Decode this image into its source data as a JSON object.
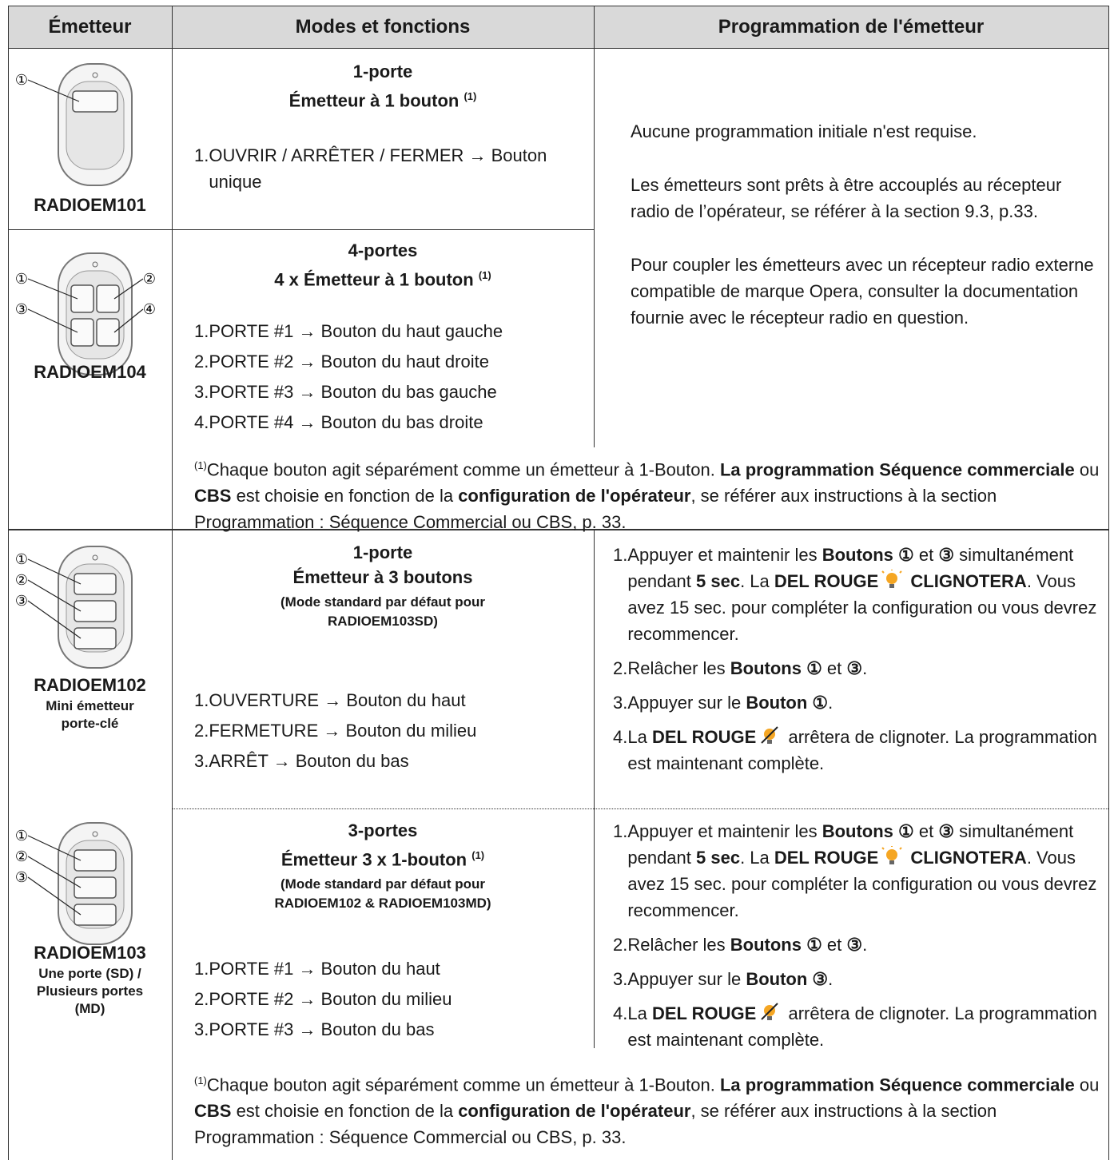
{
  "header": [
    "Émetteur",
    "Modes et fonctions",
    "Programmation de l'émetteur"
  ],
  "groups": [
    {
      "devices": [
        {
          "callouts": [
            "①"
          ],
          "model": "RADIOEM101",
          "modes": {
            "title": [
              "1-porte",
              "Émetteur à 1 bouton"
            ],
            "title_mark": "(1)",
            "items": [
              {
                "num": "1.",
                "text": "OUVRIR / ARRÊTER / FERMER → Bouton unique"
              }
            ]
          }
        },
        {
          "callouts": [
            "①",
            "②",
            "③",
            "④"
          ],
          "model": "RADIOEM104",
          "modes": {
            "title": [
              "4-portes",
              "4 x Émetteur à 1 bouton"
            ],
            "title_mark": "(1)",
            "items": [
              {
                "num": "1.",
                "text": "PORTE #1 → Bouton du haut gauche"
              },
              {
                "num": "2.",
                "text": "PORTE #2 → Bouton du haut droite"
              },
              {
                "num": "3.",
                "text": "PORTE #3 → Bouton du bas gauche"
              },
              {
                "num": "4.",
                "text": "PORTE #4 → Bouton du bas droite"
              }
            ]
          }
        }
      ],
      "programming": [
        "Aucune programmation initiale n'est requise.",
        "Les émetteurs sont prêts à être accouplés au récepteur radio de l’opérateur, se référer à la section 9.3, p.33.",
        "Pour coupler les émetteurs avec un récepteur radio externe compatible de marque Opera, consulter la documentation fournie avec le récepteur radio en question."
      ],
      "footnote": {
        "mark": "(1)",
        "runs": [
          {
            "text": "Chaque bouton agit séparément comme un émetteur à 1-Bouton. "
          },
          {
            "text": "La programmation Séquence commerciale",
            "bold": true
          },
          {
            "text": " ou "
          },
          {
            "text": "CBS",
            "bold": true
          },
          {
            "text": " est choisie en fonction de la "
          },
          {
            "text": "configuration de l'opérateur",
            "bold": true
          },
          {
            "text": ", se référer aux instructions à la section Programmation : Séquence Commercial ou CBS, p. 33."
          }
        ]
      }
    },
    {
      "devices": [
        {
          "callouts": [
            "①",
            "②",
            "③"
          ],
          "model": "RADIOEM102",
          "model_note": "Mini émetteur porte-clé",
          "modes": {
            "title": [
              "1-porte",
              "Émetteur à 3 boutons"
            ],
            "note": "(Mode standard par défaut pour RADIOEM103SD)",
            "items": [
              {
                "num": "1.",
                "text": "OUVERTURE → Bouton du haut"
              },
              {
                "num": "2.",
                "text": "FERMETURE → Bouton du milieu"
              },
              {
                "num": "3.",
                "text": "ARRÊT → Bouton du bas"
              }
            ]
          },
          "programming": [
            {
              "num": "1.",
              "runs": [
                {
                  "text": "Appuyer et maintenir les "
                },
                {
                  "text": "Boutons ①",
                  "bold": true
                },
                {
                  "text": " et "
                },
                {
                  "text": "③",
                  "bold": true
                },
                {
                  "text": " simultanément pendant "
                },
                {
                  "text": "5 sec",
                  "bold": true
                },
                {
                  "text": ". La "
                },
                {
                  "text": "DEL ROUGE",
                  "bold": true
                },
                {
                  "text": " CLIGNOTERA",
                  "bold": true
                },
                {
                  "text": ". Vous avez 15 sec. pour compléter la configuration ou vous devrez recommencer."
                }
              ]
            },
            {
              "num": "2.",
              "runs": [
                {
                  "text": "Relâcher les "
                },
                {
                  "text": "Boutons ①",
                  "bold": true
                },
                {
                  "text": " et "
                },
                {
                  "text": "③",
                  "bold": true
                },
                {
                  "text": "."
                }
              ]
            },
            {
              "num": "3.",
              "runs": [
                {
                  "text": "Appuyer sur le "
                },
                {
                  "text": "Bouton ①",
                  "bold": true
                },
                {
                  "text": "."
                }
              ]
            },
            {
              "num": "4.",
              "runs": [
                {
                  "text": "La "
                },
                {
                  "text": "DEL ROUGE",
                  "bold": true
                },
                {
                  "text": " arrêtera de clignoter. La programmation est maintenant complète."
                }
              ]
            }
          ]
        },
        {
          "callouts": [
            "①",
            "②",
            "③"
          ],
          "model": "RADIOEM103",
          "model_note": "Une porte (SD) / Plusieurs portes (MD)",
          "modes": {
            "title": [
              "3-portes",
              "Émetteur 3 x 1-bouton"
            ],
            "title_mark": "(1)",
            "note": "(Mode standard par défaut pour RADIOEM102 & RADIOEM103MD)",
            "items": [
              {
                "num": "1.",
                "text": "PORTE #1 → Bouton du haut"
              },
              {
                "num": "2.",
                "text": "PORTE #2 → Bouton du milieu"
              },
              {
                "num": "3.",
                "text": "PORTE #3 → Bouton du bas"
              }
            ]
          },
          "programming": [
            {
              "num": "1.",
              "runs": [
                {
                  "text": "Appuyer et maintenir les "
                },
                {
                  "text": "Boutons ①",
                  "bold": true
                },
                {
                  "text": " et "
                },
                {
                  "text": "③",
                  "bold": true
                },
                {
                  "text": " simultanément pendant "
                },
                {
                  "text": "5 sec",
                  "bold": true
                },
                {
                  "text": ". La "
                },
                {
                  "text": "DEL ROUGE",
                  "bold": true
                },
                {
                  "text": " CLIGNOTERA",
                  "bold": true
                },
                {
                  "text": ". Vous avez 15 sec. pour compléter la configuration ou vous devrez recommencer."
                }
              ]
            },
            {
              "num": "2.",
              "runs": [
                {
                  "text": "Relâcher les "
                },
                {
                  "text": "Boutons ①",
                  "bold": true
                },
                {
                  "text": " et "
                },
                {
                  "text": "③",
                  "bold": true
                },
                {
                  "text": "."
                }
              ]
            },
            {
              "num": "3.",
              "runs": [
                {
                  "text": "Appuyer sur le "
                },
                {
                  "text": "Bouton ③",
                  "bold": true
                },
                {
                  "text": "."
                }
              ]
            },
            {
              "num": "4.",
              "runs": [
                {
                  "text": "La "
                },
                {
                  "text": "DEL ROUGE",
                  "bold": true
                },
                {
                  "text": " arrêtera de clignoter. La programmation est maintenant complète."
                }
              ]
            }
          ]
        }
      ],
      "footnote": {
        "mark": "(1)",
        "runs": [
          {
            "text": "Chaque bouton agit séparément comme un émetteur à 1-Bouton. "
          },
          {
            "text": "La programmation Séquence commerciale",
            "bold": true
          },
          {
            "text": " ou "
          },
          {
            "text": "CBS",
            "bold": true
          },
          {
            "text": " est choisie en fonction de la "
          },
          {
            "text": "configuration de l'opérateur",
            "bold": true
          },
          {
            "text": ", se référer aux instructions à la section Programmation : Séquence Commercial ou CBS, p. 33."
          }
        ]
      }
    }
  ]
}
